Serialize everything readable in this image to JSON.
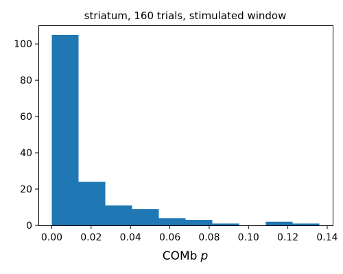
{
  "chart_data": {
    "type": "bar",
    "subtype": "histogram",
    "title": "striatum, 160 trials, stimulated window",
    "xlabel": "COMb",
    "xlabel_var": "p",
    "ylabel": "",
    "bin_edges": [
      0.0,
      0.0136,
      0.0272,
      0.0408,
      0.0544,
      0.068,
      0.0816,
      0.0952,
      0.1088,
      0.1224,
      0.136
    ],
    "counts": [
      105,
      24,
      11,
      9,
      4,
      3,
      1,
      0,
      2,
      1
    ],
    "xlim": [
      -0.0068,
      0.1428
    ],
    "ylim": [
      0,
      110.25
    ],
    "xticks": [
      0.0,
      0.02,
      0.04,
      0.06,
      0.08,
      0.1,
      0.12,
      0.14
    ],
    "xtick_labels": [
      "0.00",
      "0.02",
      "0.04",
      "0.06",
      "0.08",
      "0.10",
      "0.12",
      "0.14"
    ],
    "yticks": [
      0,
      20,
      40,
      60,
      80,
      100
    ],
    "ytick_labels": [
      "0",
      "20",
      "40",
      "60",
      "80",
      "100"
    ],
    "bar_color": "#1f77b4",
    "grid": false,
    "legend": "none"
  }
}
